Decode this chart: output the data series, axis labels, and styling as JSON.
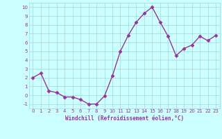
{
  "x": [
    0,
    1,
    2,
    3,
    4,
    5,
    6,
    7,
    8,
    9,
    10,
    11,
    12,
    13,
    14,
    15,
    16,
    17,
    18,
    19,
    20,
    21,
    22,
    23
  ],
  "y": [
    2.0,
    2.5,
    0.5,
    0.3,
    -0.2,
    -0.2,
    -0.5,
    -1.0,
    -1.0,
    -0.1,
    2.2,
    5.0,
    6.8,
    8.3,
    9.3,
    10.0,
    8.3,
    6.7,
    4.5,
    5.3,
    5.7,
    6.7,
    6.2,
    6.8
  ],
  "line_color": "#993399",
  "marker": "D",
  "marker_size": 2.5,
  "bg_color": "#ccffff",
  "grid_color": "#aadddd",
  "xlabel": "Windchill (Refroidissement éolien,°C)",
  "xlabel_color": "#993399",
  "tick_color": "#993399",
  "ylim": [
    -1.5,
    10.5
  ],
  "xlim": [
    -0.5,
    23.5
  ],
  "yticks": [
    -1,
    0,
    1,
    2,
    3,
    4,
    5,
    6,
    7,
    8,
    9,
    10
  ],
  "xticks": [
    0,
    1,
    2,
    3,
    4,
    5,
    6,
    7,
    8,
    9,
    10,
    11,
    12,
    13,
    14,
    15,
    16,
    17,
    18,
    19,
    20,
    21,
    22,
    23
  ],
  "ytick_labels": [
    "-1",
    "0",
    "1",
    "2",
    "3",
    "4",
    "5",
    "6",
    "7",
    "8",
    "9",
    "10"
  ]
}
